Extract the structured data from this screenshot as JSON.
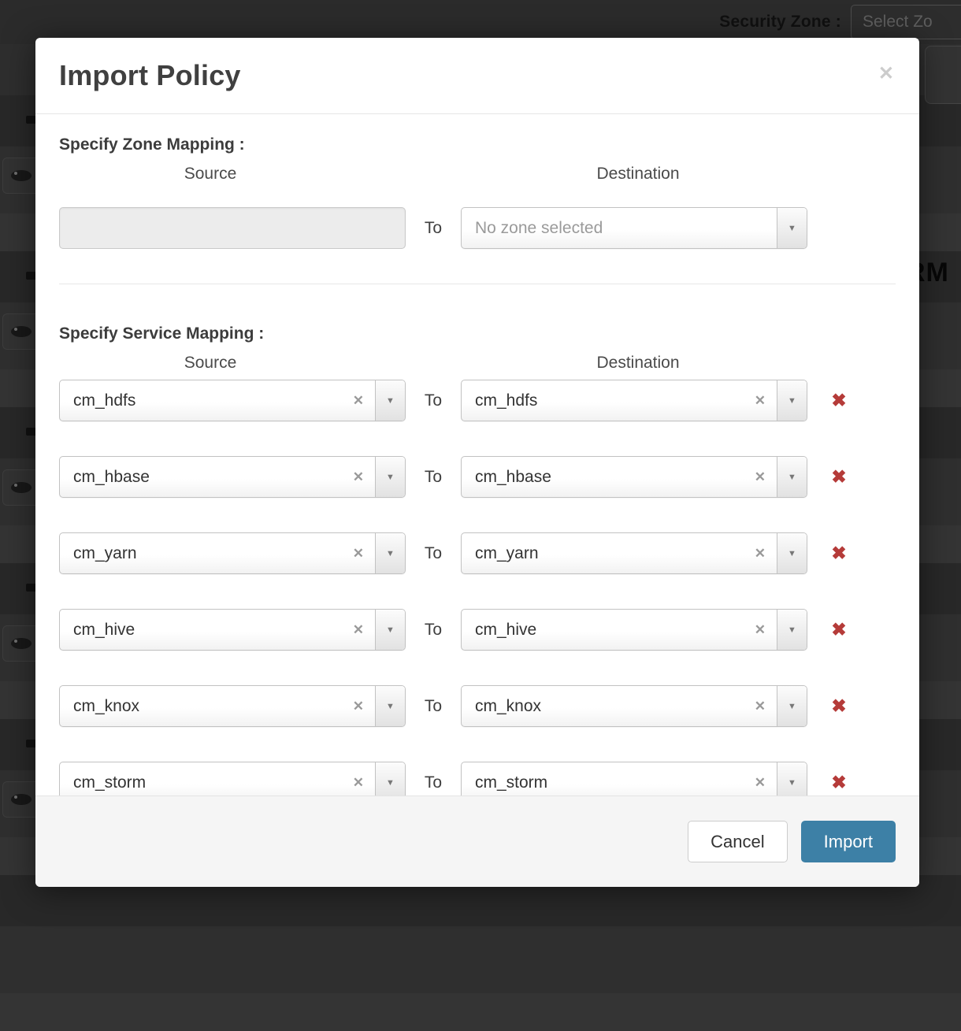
{
  "background": {
    "security_zone_label": "Security Zone :",
    "zone_select_placeholder": "Select Zo",
    "partial_table_text": "RM"
  },
  "modal": {
    "title": "Import Policy",
    "close_icon": "✕",
    "zone_mapping": {
      "heading": "Specify Zone Mapping :",
      "source_label": "Source",
      "destination_label": "Destination",
      "to_label": "To",
      "source_value": "",
      "destination_placeholder": "No zone selected",
      "dropdown_arrow_icon": "▼"
    },
    "service_mapping": {
      "heading": "Specify Service Mapping :",
      "source_label": "Source",
      "destination_label": "Destination",
      "to_label": "To",
      "clear_icon": "✕",
      "dropdown_arrow_icon": "▼",
      "delete_icon": "✖",
      "rows": [
        {
          "source": "cm_hdfs",
          "destination": "cm_hdfs"
        },
        {
          "source": "cm_hbase",
          "destination": "cm_hbase"
        },
        {
          "source": "cm_yarn",
          "destination": "cm_yarn"
        },
        {
          "source": "cm_hive",
          "destination": "cm_hive"
        },
        {
          "source": "cm_knox",
          "destination": "cm_knox"
        },
        {
          "source": "cm_storm",
          "destination": "cm_storm"
        }
      ]
    },
    "footer": {
      "cancel_label": "Cancel",
      "import_label": "Import"
    }
  },
  "colors": {
    "accent_blue": "#3d80a6",
    "danger_red": "#b53b39",
    "overlay_background": "#2c2c2c"
  }
}
